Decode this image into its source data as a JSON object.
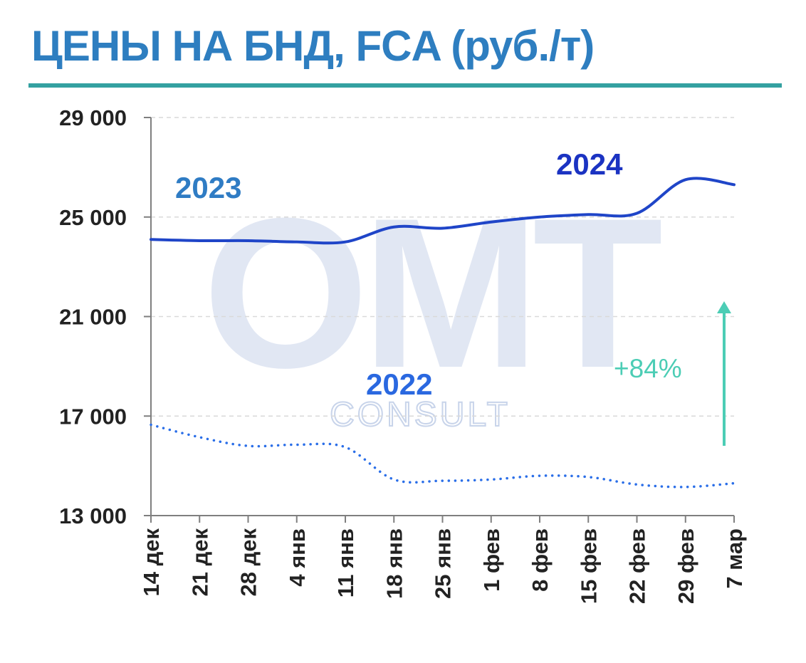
{
  "title": "ЦЕНЫ НА БНД, FCA (руб./т)",
  "colors": {
    "title": "#2e7ec0",
    "rule": "#34a1a1",
    "series_2023_2024": "#1f45c8",
    "series_2022": "#2a6ee8",
    "label_2023": "#2f7cc4",
    "label_2024": "#1b33c2",
    "label_2022": "#2a68e0",
    "annotation": "#4ccdb5",
    "watermark": "#c8d4ea"
  },
  "watermark": {
    "logo": "OMT",
    "sub": "CONSULT"
  },
  "chart_data": {
    "type": "line",
    "title": "ЦЕНЫ НА БНД, FCA (руб./т)",
    "x": [
      "14 дек",
      "21 дек",
      "28 дек",
      "4 янв",
      "11 янв",
      "18 янв",
      "25 янв",
      "1 фев",
      "8 фев",
      "15 фев",
      "22 фев",
      "29 фев",
      "7 мар"
    ],
    "ylim": [
      13000,
      29000
    ],
    "yticks": [
      {
        "value": 13000,
        "label": "13 000"
      },
      {
        "value": 17000,
        "label": "17 000"
      },
      {
        "value": 21000,
        "label": "21 000"
      },
      {
        "value": 25000,
        "label": "25 000"
      },
      {
        "value": 29000,
        "label": "29 000"
      }
    ],
    "grid": true,
    "series": [
      {
        "name": "2023 / 2024",
        "style": "solid",
        "values": [
          24100,
          24050,
          24050,
          24000,
          24000,
          24600,
          24550,
          24800,
          25000,
          25100,
          25150,
          26500,
          26300
        ]
      },
      {
        "name": "2022",
        "style": "dotted",
        "values": [
          16650,
          16150,
          15800,
          15850,
          15750,
          14450,
          14400,
          14450,
          14600,
          14550,
          14250,
          14150,
          14300
        ]
      }
    ],
    "series_labels": [
      {
        "text": "2023"
      },
      {
        "text": "2024"
      },
      {
        "text": "2022"
      }
    ],
    "annotations": [
      {
        "text": "+84%"
      }
    ]
  }
}
